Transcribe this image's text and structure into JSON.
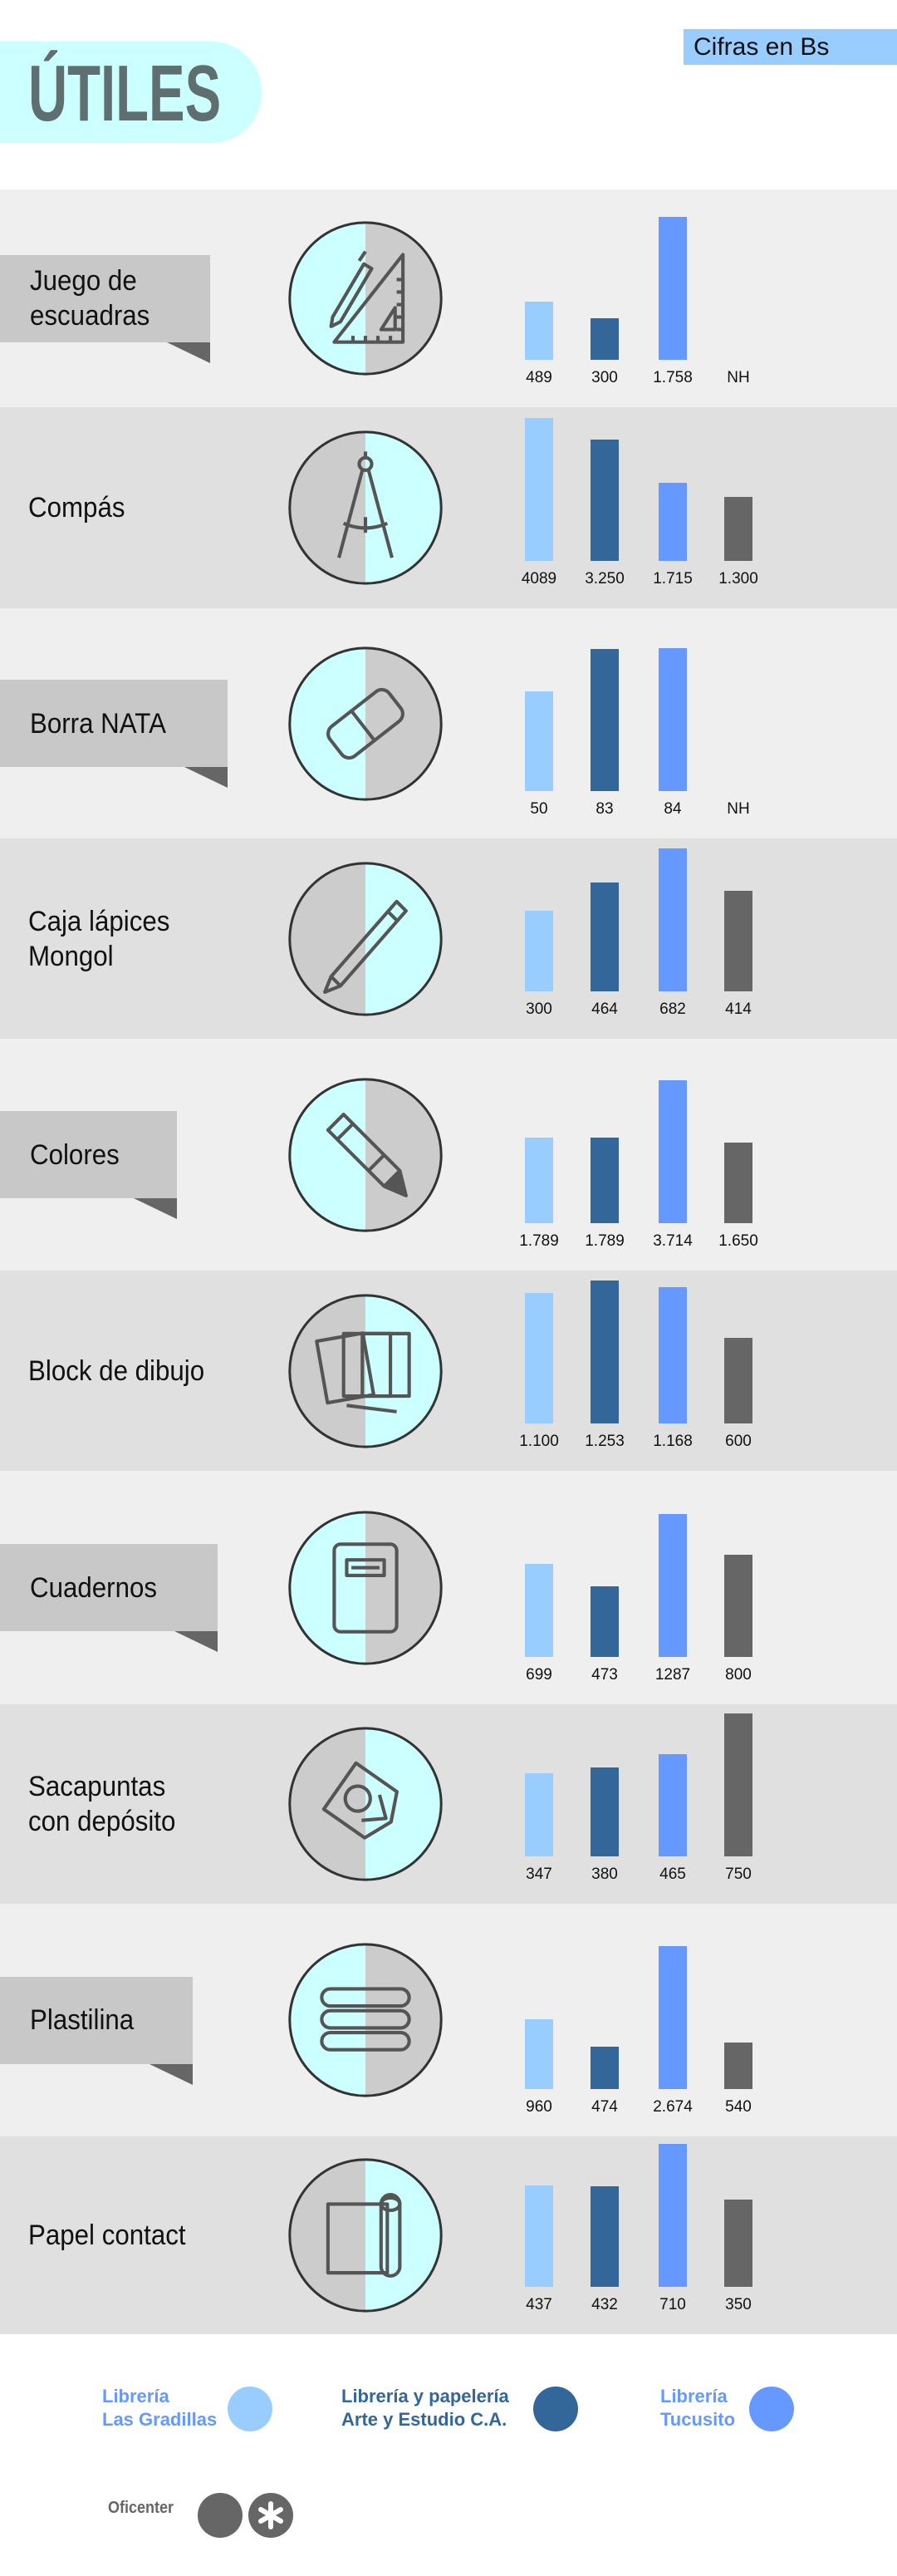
{
  "header": {
    "title": "ÚTILES",
    "units": "Cifras en Bs"
  },
  "colors": {
    "las_gradillas": "#99ccff",
    "arte_y_estudio": "#336699",
    "tucusito": "#6699ff",
    "oficenter": "#666666",
    "row_light": "#efefef",
    "row_dark": "#e0e0e0",
    "cyan": "#ccffff",
    "gray": "#cccccc"
  },
  "chart_data": {
    "type": "bar",
    "title": "ÚTILES",
    "subtitle": "Cifras en Bs",
    "series_names": [
      "Librería Las Gradillas",
      "Librería y papelería Arte y Estudio C.A.",
      "Librería Tucusito",
      "Oficenter"
    ],
    "items": [
      {
        "name": "Juego de\nescuadras",
        "icon": "set-square",
        "labels": [
          "489",
          "300",
          "1.758",
          "NH"
        ],
        "values": [
          489,
          300,
          1758,
          null
        ]
      },
      {
        "name": "Compás",
        "icon": "compass",
        "labels": [
          "4089",
          "3.250",
          "1.715",
          "1.300"
        ],
        "values": [
          4089,
          3250,
          1715,
          1300
        ]
      },
      {
        "name": "Borra NATA",
        "icon": "eraser",
        "labels": [
          "50",
          "83",
          "84",
          "NH"
        ],
        "values": [
          50,
          83,
          84,
          null
        ]
      },
      {
        "name": "Caja lápices\nMongol",
        "icon": "pencil",
        "labels": [
          "300",
          "464",
          "682",
          "414"
        ],
        "values": [
          300,
          464,
          682,
          414
        ]
      },
      {
        "name": "Colores",
        "icon": "crayon",
        "labels": [
          "1.789",
          "1.789",
          "3.714",
          "1.650"
        ],
        "values": [
          1789,
          1789,
          3714,
          1650
        ]
      },
      {
        "name": "Block de dibujo",
        "icon": "drawing-pad",
        "labels": [
          "1.100",
          "1.253",
          "1.168",
          "600"
        ],
        "values": [
          1100,
          1253,
          1168,
          600
        ]
      },
      {
        "name": "Cuadernos",
        "icon": "notebook",
        "labels": [
          "699",
          "473",
          "1287",
          "800"
        ],
        "values": [
          699,
          473,
          1287,
          800
        ]
      },
      {
        "name": "Sacapuntas\ncon depósito",
        "icon": "sharpener",
        "labels": [
          "347",
          "380",
          "465",
          "750"
        ],
        "values": [
          347,
          380,
          465,
          750
        ]
      },
      {
        "name": "Plastilina",
        "icon": "clay",
        "labels": [
          "960",
          "474",
          "2.674",
          "540"
        ],
        "values": [
          960,
          474,
          2674,
          540
        ]
      },
      {
        "name": "Papel contact",
        "icon": "contact-paper",
        "labels": [
          "437",
          "432",
          "710",
          "350"
        ],
        "values": [
          437,
          432,
          710,
          350
        ]
      }
    ]
  },
  "legend": [
    {
      "label": "Librería\nLas Gradillas",
      "color": "#99ccff",
      "text_color": "#6699ff"
    },
    {
      "label": "Librería y papelería\nArte y Estudio C.A.",
      "color": "#336699",
      "text_color": "#336699"
    },
    {
      "label": "Librería\nTucusito",
      "color": "#6699ff",
      "text_color": "#6699ff"
    },
    {
      "label": "Oficenter",
      "color": "#666666",
      "text_color": "#666666"
    }
  ]
}
